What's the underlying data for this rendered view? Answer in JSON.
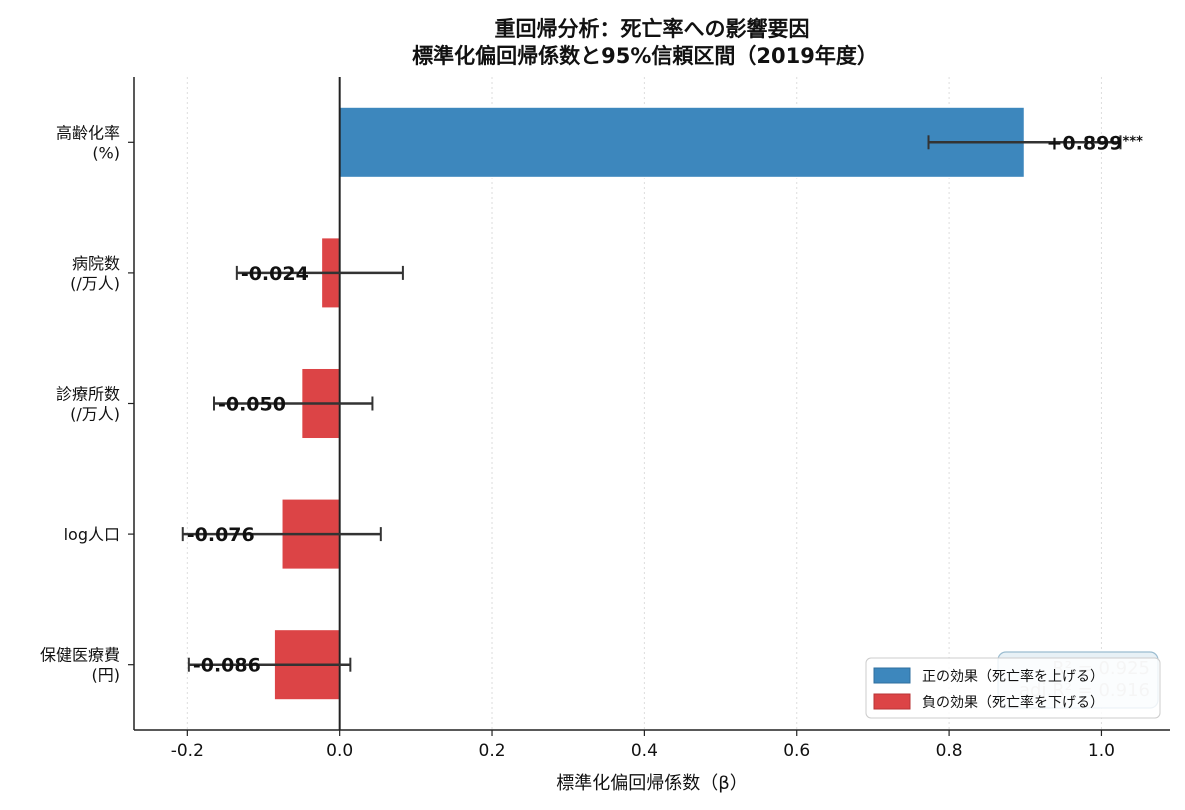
{
  "chart_data": {
    "type": "bar",
    "orientation": "horizontal",
    "title_lines": [
      "重回帰分析：死亡率への影響要因",
      "標準化偏回帰係数と95%信頼区間（2019年度）"
    ],
    "xlabel": "標準化偏回帰係数（β）",
    "xlim": [
      -0.27,
      1.09
    ],
    "xticks": [
      -0.2,
      0.0,
      0.2,
      0.4,
      0.6,
      0.8,
      1.0
    ],
    "xtick_labels": [
      "-0.2",
      "0.0",
      "0.2",
      "0.4",
      "0.6",
      "0.8",
      "1.0"
    ],
    "grid": "x-dotted",
    "reference_line": 0.0,
    "categories": [
      {
        "label_lines": [
          "高齢化率",
          "(%)"
        ],
        "value": 0.899,
        "ci": [
          0.773,
          1.025
        ],
        "value_label": "+0.899",
        "significance": "***"
      },
      {
        "label_lines": [
          "病院数",
          "(/万人)"
        ],
        "value": -0.024,
        "ci": [
          -0.135,
          0.083
        ],
        "value_label": "-0.024",
        "significance": ""
      },
      {
        "label_lines": [
          "診療所数",
          "(/万人)"
        ],
        "value": -0.05,
        "ci": [
          -0.165,
          0.043
        ],
        "value_label": "-0.050",
        "significance": ""
      },
      {
        "label_lines": [
          "log人口"
        ],
        "value": -0.076,
        "ci": [
          -0.206,
          0.054
        ],
        "value_label": "-0.076",
        "significance": ""
      },
      {
        "label_lines": [
          "保健医療費",
          "(円)"
        ],
        "value": -0.086,
        "ci": [
          -0.198,
          0.014
        ],
        "value_label": "-0.086",
        "significance": ""
      }
    ],
    "legend": {
      "placement": "bottom-right",
      "entries": [
        {
          "label": "正の効果（死亡率を上げる）",
          "color": "#3d87bd"
        },
        {
          "label": "負の効果（死亡率を下げる）",
          "color": "#dc4446"
        }
      ]
    },
    "stats_box": {
      "lines": [
        "R² = 0.925",
        "adj.R² = 0.916"
      ]
    },
    "colors": {
      "positive": "#3d87bd",
      "negative": "#dc4446",
      "errorbar": "#333333",
      "axis": "#222222"
    }
  }
}
